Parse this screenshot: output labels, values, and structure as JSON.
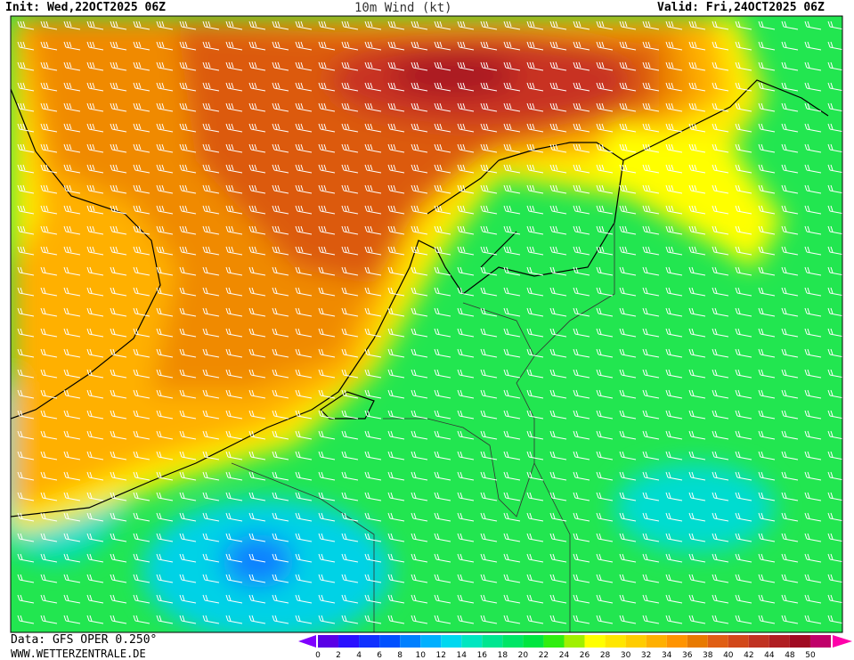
{
  "header": {
    "init": "Init: Wed,22OCT2025 06Z",
    "title": "10m Wind (kt)",
    "valid": "Valid: Fri,24OCT2025 06Z"
  },
  "footer": {
    "source": "Data: GFS OPER 0.250°",
    "website": "WWW.WETTERZENTRALE.DE"
  },
  "colorbar": {
    "labels": [
      0,
      2,
      4,
      6,
      8,
      10,
      12,
      14,
      16,
      18,
      20,
      22,
      24,
      26,
      28,
      30,
      32,
      34,
      36,
      38,
      40,
      42,
      44,
      48,
      50
    ],
    "colors": [
      "#5a00e6",
      "#2a10ff",
      "#1030ff",
      "#0050ff",
      "#0080ff",
      "#00b0ff",
      "#00d8f0",
      "#00e6c0",
      "#00e690",
      "#00e666",
      "#00e640",
      "#30ee10",
      "#a0f000",
      "#ffff00",
      "#ffe600",
      "#ffcc00",
      "#ffb000",
      "#ff9400",
      "#e87a00",
      "#e05e14",
      "#d2481a",
      "#c03222",
      "#b01e22",
      "#a00a22",
      "#c0006a"
    ]
  }
}
